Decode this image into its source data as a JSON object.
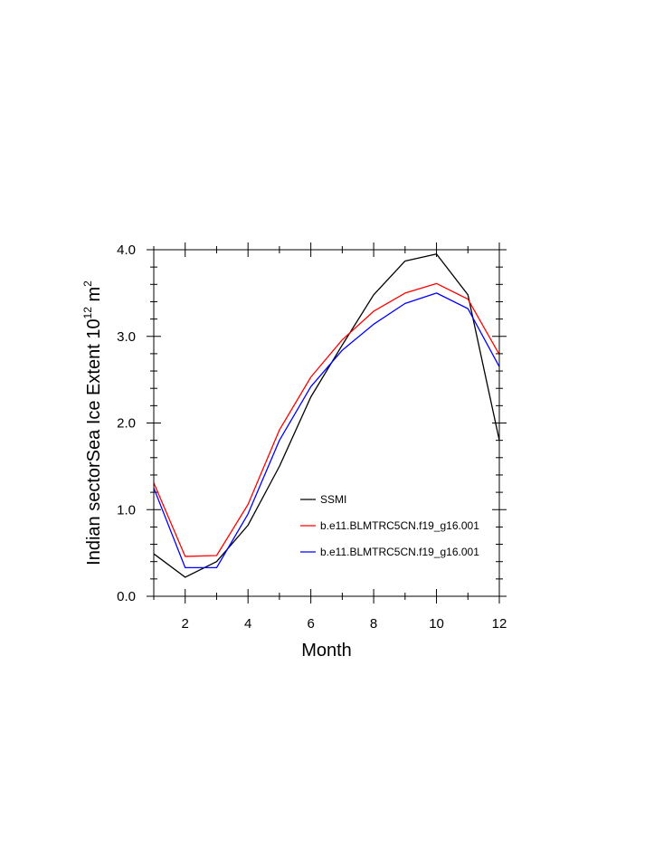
{
  "chart_data": {
    "type": "line",
    "x": [
      1,
      2,
      3,
      4,
      5,
      6,
      7,
      8,
      9,
      10,
      11,
      12
    ],
    "xlim": [
      1,
      12
    ],
    "ylim": [
      0.0,
      4.0
    ],
    "x_ticks": [
      2,
      4,
      6,
      8,
      10,
      12
    ],
    "x_tick_labels": [
      "2",
      "4",
      "6",
      "8",
      "10",
      "12"
    ],
    "y_ticks": [
      0.0,
      1.0,
      2.0,
      3.0,
      4.0
    ],
    "y_tick_labels": [
      "0.0",
      "1.0",
      "2.0",
      "3.0",
      "4.0"
    ],
    "xlabel": "Month",
    "ylabel_main": "Indian sectorSea Ice Extent 10",
    "ylabel_sup": "12",
    "ylabel_unit": " m",
    "ylabel_unit_sup": "2",
    "grid": false,
    "legend_position": "lower-right",
    "series": [
      {
        "name": "SSMI",
        "color": "#000000",
        "values": [
          0.49,
          0.22,
          0.4,
          0.82,
          1.5,
          2.3,
          2.9,
          3.48,
          3.87,
          3.95,
          3.48,
          1.8
        ]
      },
      {
        "name": "b.e11.BLMTRC5CN.f19_g16.001",
        "color": "#ff0000",
        "values": [
          1.31,
          0.46,
          0.47,
          1.06,
          1.92,
          2.53,
          2.96,
          3.29,
          3.5,
          3.61,
          3.43,
          2.79
        ]
      },
      {
        "name": "b.e11.BLMTRC5CN.f19_g16.001",
        "color": "#0000ff",
        "values": [
          1.25,
          0.33,
          0.33,
          0.95,
          1.8,
          2.42,
          2.84,
          3.14,
          3.38,
          3.5,
          3.32,
          2.65
        ]
      }
    ]
  }
}
